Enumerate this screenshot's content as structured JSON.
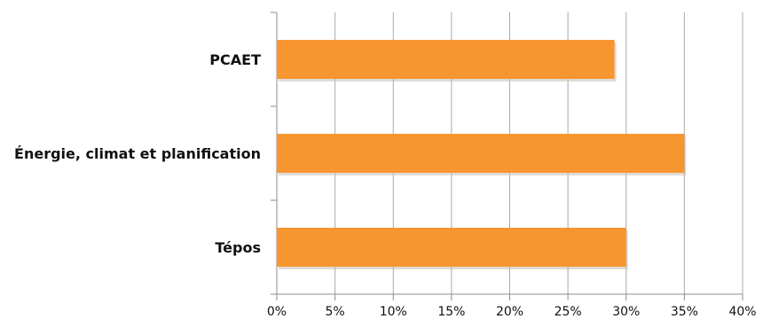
{
  "chart_data": {
    "type": "bar",
    "orientation": "horizontal",
    "title": "",
    "xlabel": "",
    "ylabel": "",
    "categories": [
      "PCAET",
      "Énergie, climat et planification",
      "Tépos"
    ],
    "values": [
      29,
      35,
      30
    ],
    "value_unit": "%",
    "xlim": [
      0,
      40
    ],
    "x_ticks": [
      0,
      5,
      10,
      15,
      20,
      25,
      30,
      35,
      40
    ],
    "x_tick_labels": [
      "0%",
      "5%",
      "10%",
      "15%",
      "20%",
      "25%",
      "30%",
      "35%",
      "40%"
    ],
    "grid": "vertical",
    "legend": "none",
    "colors": {
      "bar": "#F7962F",
      "bar_shadow": "#C7BEB3",
      "grid": "#A9A9A9",
      "axis": "#8C8C8C",
      "text": "#111111"
    }
  }
}
